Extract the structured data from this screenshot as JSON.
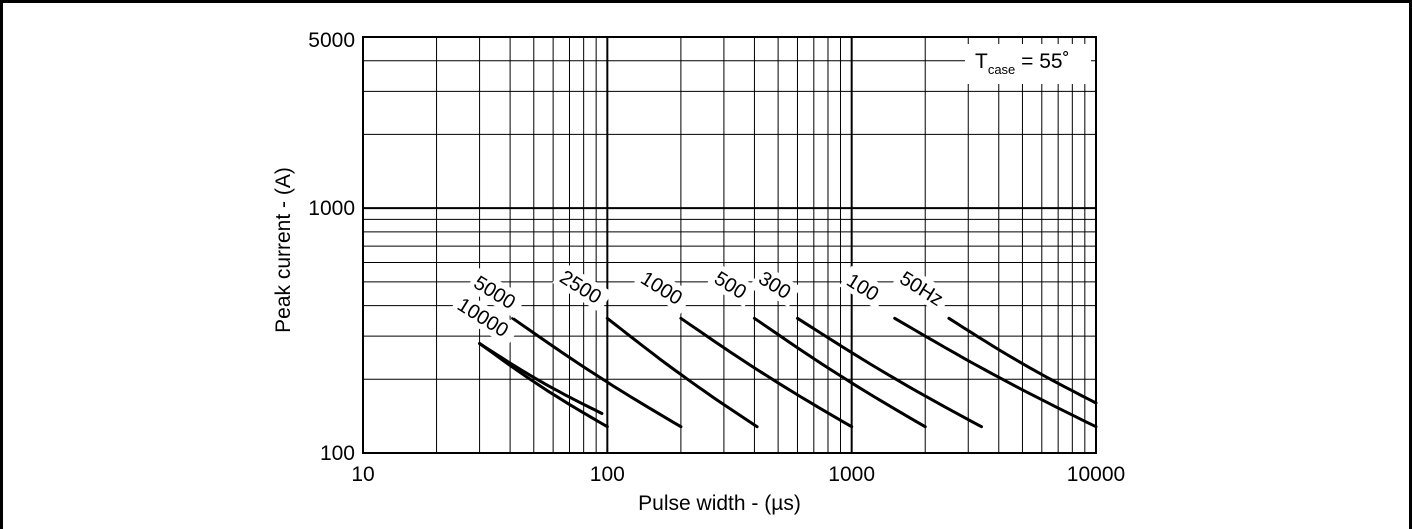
{
  "chart_data": {
    "type": "line",
    "xlabel": "Pulse width - (µs)",
    "ylabel": "Peak current - (A)",
    "xscale": "log",
    "yscale": "log",
    "xlim": [
      10,
      10000
    ],
    "ylim": [
      100,
      5000
    ],
    "grid": true,
    "x_ticks": [
      "10",
      "100",
      "1000",
      "10000"
    ],
    "y_ticks": [
      "100",
      "1000",
      "5000"
    ],
    "annotation": {
      "main": "T",
      "sub": "case",
      "suffix": " = 55˚"
    },
    "series": [
      {
        "name": "10000",
        "x": [
          30,
          100
        ],
        "y": [
          280,
          128
        ]
      },
      {
        "name": "5000",
        "x": [
          30,
          95
        ],
        "y": [
          280,
          145
        ]
      },
      {
        "name": "2500",
        "x": [
          41,
          200
        ],
        "y": [
          355,
          128
        ]
      },
      {
        "name": "1000",
        "x": [
          100,
          410
        ],
        "y": [
          355,
          128
        ]
      },
      {
        "name": "500",
        "x": [
          200,
          1000
        ],
        "y": [
          355,
          128
        ]
      },
      {
        "name": "300",
        "x": [
          400,
          2000
        ],
        "y": [
          355,
          128
        ]
      },
      {
        "name": "100",
        "x": [
          600,
          3400
        ],
        "y": [
          355,
          128
        ]
      },
      {
        "name": "50Hz",
        "x": [
          1500,
          10000
        ],
        "y": [
          355,
          128
        ]
      },
      {
        "name": "",
        "x": [
          2500,
          10000
        ],
        "y": [
          355,
          160
        ]
      }
    ],
    "curve_labels": [
      {
        "text": "5000",
        "x": 28,
        "y": 480
      },
      {
        "text": "10000",
        "x": 24,
        "y": 390
      },
      {
        "text": "2500",
        "x": 63,
        "y": 505
      },
      {
        "text": "1000",
        "x": 135,
        "y": 500
      },
      {
        "text": "500",
        "x": 270,
        "y": 500
      },
      {
        "text": "300",
        "x": 410,
        "y": 500
      },
      {
        "text": "100",
        "x": 940,
        "y": 490
      },
      {
        "text": "50Hz",
        "x": 1550,
        "y": 500
      }
    ]
  }
}
